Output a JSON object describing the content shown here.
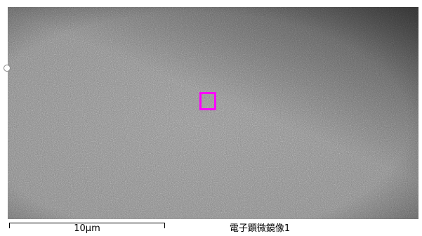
{
  "image": {
    "caption": "電子顕微鏡像1",
    "marker_color": "#ff00ff"
  },
  "scale_bar": {
    "label": "10μm"
  },
  "icons": {
    "roi": "square-roi-icon",
    "edge_handle": "circle-handle-icon"
  }
}
